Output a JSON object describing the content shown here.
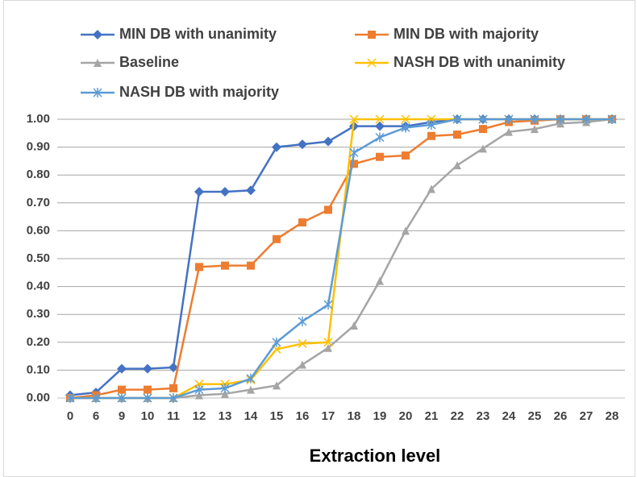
{
  "chart_data": {
    "type": "line",
    "x_label": "Extraction level",
    "categories": [
      "0",
      "6",
      "9",
      "10",
      "11",
      "12",
      "13",
      "14",
      "15",
      "16",
      "17",
      "18",
      "19",
      "20",
      "21",
      "22",
      "23",
      "24",
      "25",
      "26",
      "27",
      "28"
    ],
    "ylim": [
      0,
      1
    ],
    "yticks": [
      {
        "value": 0,
        "label": "0.00"
      },
      {
        "value": 0.1,
        "label": "0.10"
      },
      {
        "value": 0.2,
        "label": "0.20"
      },
      {
        "value": 0.3,
        "label": "0.30"
      },
      {
        "value": 0.4,
        "label": "0.40"
      },
      {
        "value": 0.5,
        "label": "0.50"
      },
      {
        "value": 0.6,
        "label": "0.60"
      },
      {
        "value": 0.7,
        "label": "0.70"
      },
      {
        "value": 0.8,
        "label": "0.80"
      },
      {
        "value": 0.9,
        "label": "0.90"
      },
      {
        "value": 1,
        "label": "1.00"
      }
    ],
    "grid": true,
    "legend": "top",
    "series": [
      {
        "name": "MIN DB with unanimity",
        "color": "#4472c4",
        "marker": "diamond",
        "values": [
          0.01,
          0.02,
          0.105,
          0.105,
          0.11,
          0.74,
          0.74,
          0.745,
          0.9,
          0.91,
          0.92,
          0.975,
          0.975,
          0.975,
          0.99,
          1,
          1,
          1,
          1,
          1,
          1,
          1
        ]
      },
      {
        "name": "MIN DB with majority",
        "color": "#ed7d31",
        "marker": "square",
        "values": [
          0,
          0.01,
          0.03,
          0.03,
          0.035,
          0.47,
          0.475,
          0.475,
          0.57,
          0.63,
          0.675,
          0.84,
          0.865,
          0.87,
          0.94,
          0.945,
          0.965,
          0.99,
          0.995,
          1,
          1,
          1
        ]
      },
      {
        "name": "Baseline",
        "color": "#a5a5a5",
        "marker": "triangle",
        "values": [
          0,
          0,
          0,
          0,
          0,
          0.01,
          0.015,
          0.03,
          0.045,
          0.12,
          0.18,
          0.26,
          0.42,
          0.6,
          0.75,
          0.835,
          0.895,
          0.955,
          0.965,
          0.985,
          0.99,
          1
        ]
      },
      {
        "name": "NASH DB with unanimity",
        "color": "#ffc000",
        "marker": "x",
        "values": [
          0,
          0,
          0,
          0,
          0,
          0.05,
          0.05,
          0.065,
          0.175,
          0.195,
          0.2,
          1,
          1,
          1,
          1,
          1,
          1,
          1,
          1,
          1,
          1,
          1
        ]
      },
      {
        "name": "NASH DB with majority",
        "color": "#5b9bd5",
        "marker": "star",
        "values": [
          0,
          0,
          0,
          0,
          0,
          0.03,
          0.035,
          0.07,
          0.2,
          0.275,
          0.335,
          0.88,
          0.935,
          0.97,
          0.98,
          1,
          1,
          1,
          1,
          1,
          1,
          1
        ]
      }
    ]
  }
}
